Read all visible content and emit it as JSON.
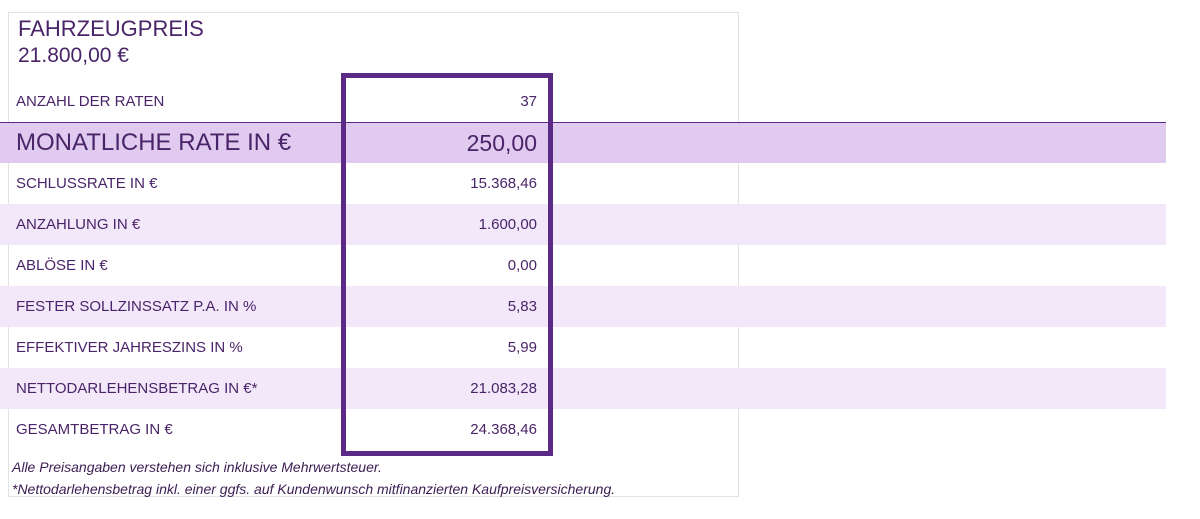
{
  "header": {
    "title": "FAHRZEUGPREIS",
    "price": "21.800,00 €"
  },
  "table": {
    "rows": [
      [
        "ANZAHL DER RATEN",
        "37"
      ],
      [
        "MONATLICHE RATE IN €",
        "250,00"
      ],
      [
        "SCHLUSSRATE IN €",
        "15.368,46"
      ],
      [
        "ANZAHLUNG IN €",
        "1.600,00"
      ],
      [
        "ABLÖSE IN €",
        "0,00"
      ],
      [
        "FESTER SOLLZINSSATZ P.A. IN %",
        "5,83"
      ],
      [
        "EFFEKTIVER JAHRESZINS IN %",
        "5,99"
      ],
      [
        "NETTODARLEHENSBETRAG IN €*",
        "21.083,28"
      ],
      [
        "GESAMTBETRAG IN €",
        "24.368,46"
      ]
    ]
  },
  "footnotes": [
    "Alle Preisangaben verstehen sich inklusive Mehrwertsteuer.",
    "*Nettodarlehensbetrag inkl. einer ggfs. auf Kundenwunsch mitfinanzierten Kaufpreisversicherung."
  ]
}
